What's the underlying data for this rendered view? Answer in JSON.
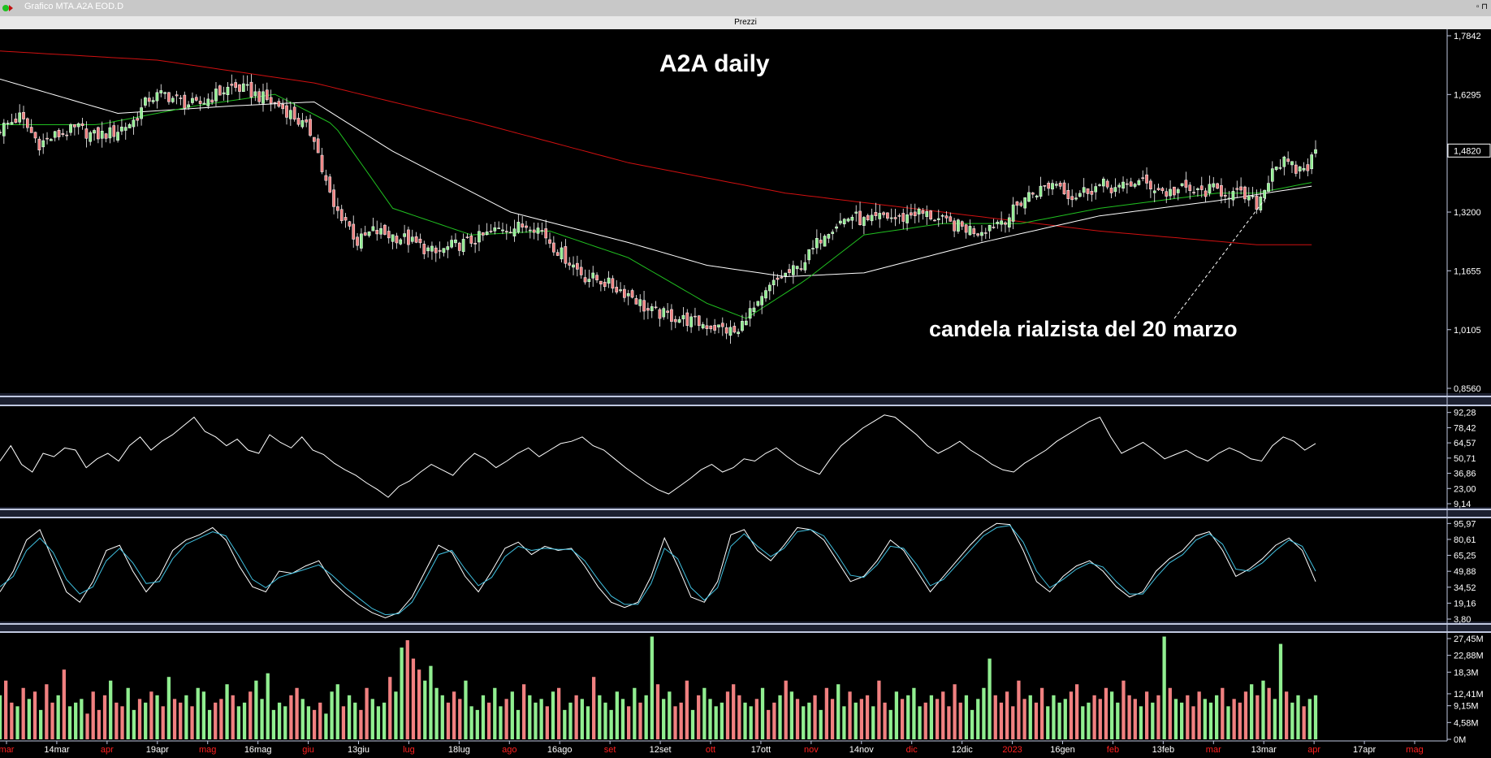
{
  "window": {
    "title": "Grafico MTA.A2A EOD.D",
    "panel_title": "Prezzi"
  },
  "colors": {
    "up": "#90ee90",
    "down": "#f08080",
    "ma_long": "#d01010",
    "ma_mid": "#ffffff",
    "ma_short": "#20c020",
    "osc": "#ffffff",
    "stoch_k": "#ffffff",
    "stoch_d": "#40c0e0",
    "bg": "#000000",
    "separator": "#c0c8e0"
  },
  "annotations": {
    "title": "A2A daily",
    "note": "candela rialzista del 20 marzo",
    "price_tag": "1,4820"
  },
  "chart_data": [
    {
      "type": "candlestick",
      "title": "A2A daily",
      "ylim": [
        0.856,
        1.7842
      ],
      "yticks": [
        "1,7842",
        "1,6295",
        "1,4820",
        "1,3200",
        "1,1655",
        "1,0105",
        "0,8560"
      ],
      "last_price": 1.482,
      "x_labels": [
        {
          "t": "mar",
          "c": "red"
        },
        {
          "t": "14mar",
          "c": "white"
        },
        {
          "t": "apr",
          "c": "red"
        },
        {
          "t": "19apr",
          "c": "white"
        },
        {
          "t": "mag",
          "c": "red"
        },
        {
          "t": "16mag",
          "c": "white"
        },
        {
          "t": "giu",
          "c": "red"
        },
        {
          "t": "13giu",
          "c": "white"
        },
        {
          "t": "lug",
          "c": "red"
        },
        {
          "t": "18lug",
          "c": "white"
        },
        {
          "t": "ago",
          "c": "red"
        },
        {
          "t": "16ago",
          "c": "white"
        },
        {
          "t": "set",
          "c": "red"
        },
        {
          "t": "12set",
          "c": "white"
        },
        {
          "t": "ott",
          "c": "red"
        },
        {
          "t": "17ott",
          "c": "white"
        },
        {
          "t": "nov",
          "c": "red"
        },
        {
          "t": "14nov",
          "c": "white"
        },
        {
          "t": "dic",
          "c": "red"
        },
        {
          "t": "12dic",
          "c": "white"
        },
        {
          "t": "2023",
          "c": "red"
        },
        {
          "t": "16gen",
          "c": "white"
        },
        {
          "t": "feb",
          "c": "red"
        },
        {
          "t": "13feb",
          "c": "white"
        },
        {
          "t": "mar",
          "c": "red"
        },
        {
          "t": "13mar",
          "c": "white"
        },
        {
          "t": "apr",
          "c": "red"
        },
        {
          "t": "17apr",
          "c": "white"
        },
        {
          "t": "mag",
          "c": "red"
        }
      ],
      "close_path": [
        [
          0,
          1.54
        ],
        [
          5,
          1.57
        ],
        [
          10,
          1.5
        ],
        [
          14,
          1.52
        ],
        [
          20,
          1.54
        ],
        [
          24,
          1.52
        ],
        [
          29,
          1.53
        ],
        [
          34,
          1.56
        ],
        [
          38,
          1.62
        ],
        [
          42,
          1.63
        ],
        [
          46,
          1.61
        ],
        [
          50,
          1.6
        ],
        [
          55,
          1.63
        ],
        [
          59,
          1.65
        ],
        [
          63,
          1.64
        ],
        [
          67,
          1.62
        ],
        [
          71,
          1.6
        ],
        [
          74,
          1.58
        ],
        [
          77,
          1.55
        ],
        [
          80,
          1.52
        ],
        [
          82,
          1.43
        ],
        [
          85,
          1.33
        ],
        [
          88,
          1.3
        ],
        [
          91,
          1.24
        ],
        [
          95,
          1.27
        ],
        [
          99,
          1.26
        ],
        [
          103,
          1.25
        ],
        [
          107,
          1.23
        ],
        [
          111,
          1.21
        ],
        [
          115,
          1.23
        ],
        [
          119,
          1.24
        ],
        [
          124,
          1.26
        ],
        [
          128,
          1.28
        ],
        [
          132,
          1.28
        ],
        [
          135,
          1.29
        ],
        [
          138,
          1.27
        ],
        [
          141,
          1.23
        ],
        [
          145,
          1.19
        ],
        [
          149,
          1.15
        ],
        [
          153,
          1.14
        ],
        [
          157,
          1.12
        ],
        [
          161,
          1.1
        ],
        [
          165,
          1.06
        ],
        [
          169,
          1.05
        ],
        [
          173,
          1.04
        ],
        [
          177,
          1.03
        ],
        [
          181,
          1.02
        ],
        [
          185,
          1.01
        ],
        [
          188,
          1.0
        ],
        [
          190,
          1.05
        ],
        [
          193,
          1.07
        ],
        [
          196,
          1.12
        ],
        [
          199,
          1.15
        ],
        [
          203,
          1.17
        ],
        [
          207,
          1.22
        ],
        [
          210,
          1.27
        ],
        [
          213,
          1.29
        ],
        [
          217,
          1.31
        ],
        [
          221,
          1.29
        ],
        [
          225,
          1.31
        ],
        [
          229,
          1.3
        ],
        [
          233,
          1.32
        ],
        [
          237,
          1.31
        ],
        [
          241,
          1.29
        ],
        [
          245,
          1.28
        ],
        [
          249,
          1.27
        ],
        [
          253,
          1.29
        ],
        [
          257,
          1.31
        ],
        [
          261,
          1.36
        ],
        [
          265,
          1.38
        ],
        [
          269,
          1.4
        ],
        [
          273,
          1.36
        ],
        [
          277,
          1.38
        ],
        [
          281,
          1.39
        ],
        [
          285,
          1.38
        ],
        [
          289,
          1.4
        ],
        [
          293,
          1.39
        ],
        [
          297,
          1.37
        ],
        [
          301,
          1.38
        ],
        [
          305,
          1.37
        ],
        [
          309,
          1.38
        ],
        [
          313,
          1.37
        ],
        [
          317,
          1.36
        ],
        [
          320,
          1.34
        ],
        [
          322,
          1.38
        ],
        [
          324,
          1.44
        ],
        [
          327,
          1.45
        ],
        [
          330,
          1.43
        ],
        [
          333,
          1.44
        ],
        [
          335,
          1.48
        ]
      ],
      "ma_long_path": [
        [
          0,
          1.744
        ],
        [
          40,
          1.72
        ],
        [
          80,
          1.66
        ],
        [
          120,
          1.56
        ],
        [
          160,
          1.45
        ],
        [
          200,
          1.37
        ],
        [
          240,
          1.32
        ],
        [
          280,
          1.27
        ],
        [
          320,
          1.234
        ],
        [
          335,
          1.234
        ]
      ],
      "ma_mid_path": [
        [
          0,
          1.67
        ],
        [
          30,
          1.58
        ],
        [
          60,
          1.6
        ],
        [
          80,
          1.61
        ],
        [
          100,
          1.48
        ],
        [
          130,
          1.32
        ],
        [
          160,
          1.24
        ],
        [
          180,
          1.18
        ],
        [
          200,
          1.15
        ],
        [
          220,
          1.16
        ],
        [
          250,
          1.24
        ],
        [
          280,
          1.31
        ],
        [
          310,
          1.35
        ],
        [
          335,
          1.39
        ]
      ],
      "ma_short_path": [
        [
          0,
          1.55
        ],
        [
          25,
          1.55
        ],
        [
          50,
          1.6
        ],
        [
          70,
          1.63
        ],
        [
          85,
          1.55
        ],
        [
          100,
          1.33
        ],
        [
          120,
          1.26
        ],
        [
          140,
          1.27
        ],
        [
          160,
          1.2
        ],
        [
          180,
          1.08
        ],
        [
          190,
          1.04
        ],
        [
          205,
          1.14
        ],
        [
          220,
          1.26
        ],
        [
          240,
          1.29
        ],
        [
          260,
          1.29
        ],
        [
          280,
          1.33
        ],
        [
          310,
          1.37
        ],
        [
          320,
          1.37
        ],
        [
          335,
          1.4
        ]
      ]
    },
    {
      "type": "line",
      "title": "",
      "ylim": [
        9.14,
        95.0
      ],
      "yticks": [
        "92,28",
        "78,42",
        "64,57",
        "50,71",
        "36,86",
        "23,00",
        "9,14"
      ],
      "series": [
        {
          "values": [
            48,
            62,
            45,
            38,
            55,
            52,
            60,
            58,
            42,
            50,
            55,
            48,
            62,
            70,
            58,
            66,
            72,
            80,
            88,
            75,
            70,
            62,
            68,
            58,
            55,
            72,
            65,
            60,
            70,
            58,
            54,
            46,
            40,
            35,
            28,
            22,
            15,
            25,
            30,
            38,
            45,
            40,
            35,
            46,
            55,
            50,
            42,
            48,
            55,
            60,
            52,
            58,
            64,
            66,
            70,
            62,
            58,
            50,
            42,
            35,
            28,
            22,
            18,
            25,
            32,
            40,
            45,
            38,
            42,
            50,
            48,
            55,
            60,
            52,
            45,
            40,
            36,
            50,
            62,
            70,
            78,
            84,
            90,
            88,
            80,
            72,
            62,
            55,
            60,
            66,
            58,
            52,
            45,
            40,
            38,
            46,
            52,
            58,
            66,
            72,
            78,
            84,
            88,
            70,
            55,
            60,
            65,
            58,
            50,
            54,
            58,
            52,
            48,
            55,
            60,
            56,
            50,
            48,
            62,
            70,
            66,
            58,
            64
          ]
        }
      ]
    },
    {
      "type": "line",
      "title": "",
      "ylim": [
        3.8,
        97.0
      ],
      "yticks": [
        "95,97",
        "80,61",
        "65,25",
        "49,88",
        "34,52",
        "19,16",
        "3,80"
      ],
      "series": [
        {
          "values": [
            30,
            50,
            80,
            90,
            60,
            30,
            20,
            40,
            70,
            75,
            50,
            30,
            45,
            70,
            80,
            85,
            92,
            80,
            55,
            35,
            30,
            50,
            48,
            55,
            60,
            40,
            28,
            18,
            10,
            5,
            10,
            25,
            50,
            75,
            68,
            45,
            30,
            50,
            72,
            78,
            66,
            74,
            70,
            72,
            55,
            35,
            20,
            15,
            20,
            45,
            82,
            55,
            25,
            20,
            40,
            85,
            90,
            70,
            60,
            75,
            92,
            90,
            80,
            60,
            40,
            45,
            60,
            80,
            70,
            50,
            30,
            45,
            60,
            75,
            88,
            96,
            95,
            70,
            40,
            30,
            45,
            55,
            60,
            50,
            35,
            25,
            30,
            50,
            62,
            70,
            84,
            88,
            70,
            45,
            52,
            62,
            75,
            82,
            70,
            40
          ]
        },
        {
          "values": [
            35,
            45,
            70,
            82,
            68,
            42,
            28,
            35,
            60,
            72,
            58,
            38,
            40,
            62,
            76,
            82,
            88,
            84,
            64,
            42,
            34,
            44,
            48,
            52,
            56,
            46,
            34,
            24,
            14,
            8,
            9,
            20,
            42,
            66,
            70,
            52,
            36,
            44,
            64,
            74,
            70,
            72,
            71,
            71,
            60,
            42,
            26,
            18,
            18,
            38,
            72,
            62,
            34,
            22,
            34,
            74,
            86,
            74,
            64,
            72,
            88,
            90,
            84,
            66,
            46,
            44,
            56,
            74,
            72,
            56,
            36,
            42,
            56,
            70,
            84,
            92,
            94,
            78,
            50,
            34,
            42,
            52,
            58,
            54,
            40,
            28,
            28,
            44,
            58,
            66,
            80,
            86,
            76,
            52,
            50,
            58,
            70,
            80,
            74,
            50
          ]
        }
      ]
    },
    {
      "type": "bar",
      "title": "",
      "ylim": [
        0,
        27.45
      ],
      "yticks": [
        "27,45M",
        "22,88M",
        "18,3M",
        "12,41M",
        "9,15M",
        "4,58M",
        "0M"
      ],
      "series": [
        {
          "values": [
            12,
            16,
            10,
            9,
            14,
            11,
            13,
            8,
            15,
            10,
            12,
            19,
            9,
            10,
            11,
            7,
            13,
            8,
            12,
            16,
            10,
            9,
            14,
            8,
            11,
            10,
            13,
            12,
            9,
            17,
            11,
            10,
            12,
            9,
            14,
            13,
            8,
            10,
            11,
            15,
            12,
            9,
            10,
            13,
            16,
            11,
            18,
            8,
            10,
            9,
            12,
            14,
            11,
            9,
            8,
            10,
            7,
            13,
            15,
            9,
            12,
            10,
            8,
            14,
            11,
            9,
            10,
            17,
            13,
            25,
            27,
            22,
            19,
            16,
            20,
            14,
            12,
            10,
            13,
            11,
            16,
            9,
            8,
            12,
            10,
            14,
            9,
            11,
            13,
            8,
            15,
            12,
            10,
            11,
            9,
            13,
            14,
            8,
            10,
            12,
            11,
            9,
            17,
            12,
            10,
            8,
            13,
            11,
            9,
            14,
            10,
            12,
            28,
            15,
            11,
            13,
            9,
            10,
            16,
            8,
            12,
            14,
            11,
            9,
            10,
            13,
            15,
            12,
            10,
            9,
            11,
            14,
            8,
            10,
            12,
            16,
            13,
            11,
            9,
            10,
            12,
            8,
            14,
            11,
            15,
            9,
            13,
            10,
            11,
            12,
            9,
            16,
            10,
            8,
            13,
            11,
            12,
            14,
            9,
            10,
            12,
            11,
            13,
            9,
            15,
            10,
            12,
            8,
            11,
            14,
            22,
            12,
            10,
            13,
            9,
            16,
            11,
            12,
            10,
            14,
            9,
            12,
            10,
            11,
            13,
            15,
            9,
            10,
            12,
            11,
            14,
            13,
            10,
            16,
            12,
            11,
            9,
            13,
            10,
            12,
            28,
            14,
            11,
            10,
            12,
            9,
            13,
            11,
            10,
            12,
            14,
            9,
            11,
            10,
            13,
            15,
            12,
            16,
            14,
            11,
            26,
            13,
            10,
            12,
            9,
            11,
            12
          ]
        }
      ]
    }
  ]
}
